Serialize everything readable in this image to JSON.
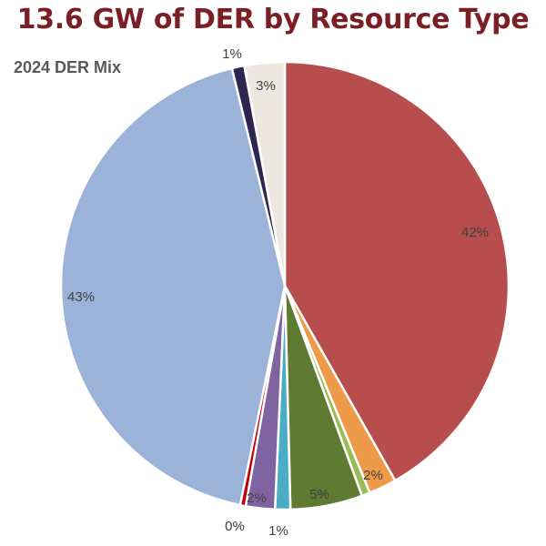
{
  "chart_data": {
    "type": "pie",
    "title": "13.6 GW of DER by Resource Type",
    "subtitle": "2024 DER Mix",
    "slices": [
      {
        "value": 41.8,
        "label": "42%",
        "color": "#b74e4d"
      },
      {
        "value": 2.0,
        "label": "2%",
        "color": "#ef9a48"
      },
      {
        "value": 0.6,
        "label": "",
        "color": "#9bbb59"
      },
      {
        "value": 5.2,
        "label": "5%",
        "color": "#5f7a31"
      },
      {
        "value": 1.1,
        "label": "1%",
        "color": "#4bacc6"
      },
      {
        "value": 2.1,
        "label": "2%",
        "color": "#8064a2"
      },
      {
        "value": 0.4,
        "label": "0%",
        "color": "#c00000"
      },
      {
        "value": 43.0,
        "label": "43%",
        "color": "#9bb3d8"
      },
      {
        "value": 0.9,
        "label": "1%",
        "color": "#2e2650"
      },
      {
        "value": 2.9,
        "label": "3%",
        "color": "#ece8df"
      }
    ]
  }
}
